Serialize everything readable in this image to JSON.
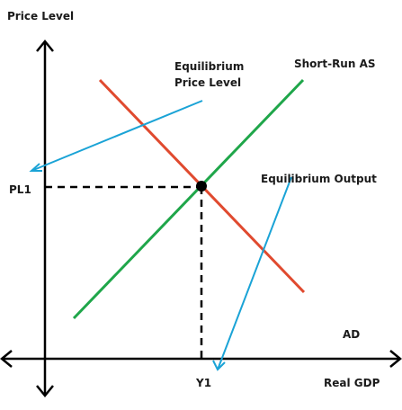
{
  "labels": {
    "y_axis": "Price Level",
    "x_axis": "Real GDP",
    "pl1": "PL1",
    "y1": "Y1",
    "sras": "Short-Run AS",
    "ad": "AD",
    "eq_price_line1": "Equilibrium",
    "eq_price_line2": "Price Level",
    "eq_output": "Equilibrium Output"
  },
  "colors": {
    "axes": "#000000",
    "ad_curve": "#e04a2f",
    "sras_curve": "#1fa64a",
    "pointer_arrows": "#1aa3d6",
    "guide_lines": "#000000",
    "equilibrium_point": "#000000"
  }
}
